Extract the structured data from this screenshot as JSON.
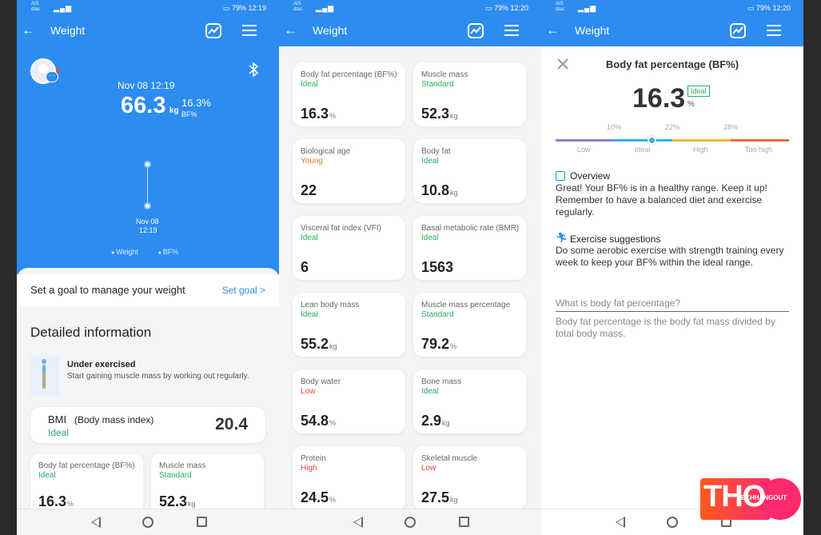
{
  "status": {
    "carrier_top": "AIS",
    "carrier_bottom": "dtac",
    "battery": "79%",
    "time_left": "12:19",
    "time_mid": "12:20",
    "time_right": "12:20"
  },
  "title": "Weight",
  "panel1": {
    "date": "Nov 08 12:19",
    "weight": "66.3",
    "weight_unit": "kg",
    "bf": "16.3%",
    "bf_label": "BF%",
    "chart_date": "Nov 08",
    "chart_time": "12:19",
    "legend": [
      "Weight",
      "BF%"
    ],
    "goal_text": "Set a goal to manage your weight",
    "goal_link": "Set goal >",
    "detail_title": "Detailed information",
    "status_title": "Under exercised",
    "status_desc": "Start gaining muscle mass by working out regularly.",
    "bmi_label": "BMI",
    "bmi_sub": "(Body mass index)",
    "bmi_status": "Ideal",
    "bmi_value": "20.4",
    "cards": [
      {
        "label": "Body fat percentage (BF%)",
        "status": "Ideal",
        "value": "16.3",
        "unit": "%"
      },
      {
        "label": "Muscle mass",
        "status": "Standard",
        "value": "52.3",
        "unit": "kg"
      }
    ]
  },
  "panel2": {
    "cards": [
      {
        "label": "Body fat percentage (BF%)",
        "status": "Ideal",
        "value": "16.3",
        "unit": "%",
        "c": "green"
      },
      {
        "label": "Muscle mass",
        "status": "Standard",
        "value": "52.3",
        "unit": "kg",
        "c": "green"
      },
      {
        "label": "Biological age",
        "status": "Young",
        "value": "22",
        "unit": "",
        "c": "orange"
      },
      {
        "label": "Body fat",
        "status": "Ideal",
        "value": "10.8",
        "unit": "kg",
        "c": "green"
      },
      {
        "label": "Visceral fat index (VFI)",
        "status": "Ideal",
        "value": "6",
        "unit": "",
        "c": "green"
      },
      {
        "label": "Basal metabolic rate (BMR)",
        "status": "Ideal",
        "value": "1563",
        "unit": "",
        "c": "green"
      },
      {
        "label": "Lean body mass",
        "status": "Ideal",
        "value": "55.2",
        "unit": "kg",
        "c": "green"
      },
      {
        "label": "Muscle mass percentage",
        "status": "Standard",
        "value": "79.2",
        "unit": "%",
        "c": "green"
      },
      {
        "label": "Body water",
        "status": "Low",
        "value": "54.8",
        "unit": "%",
        "c": "red"
      },
      {
        "label": "Bone mass",
        "status": "Ideal",
        "value": "2.9",
        "unit": "kg",
        "c": "green"
      },
      {
        "label": "Protein",
        "status": "High",
        "value": "24.5",
        "unit": "%",
        "c": "red"
      },
      {
        "label": "Skeletal muscle",
        "status": "Low",
        "value": "27.5",
        "unit": "kg",
        "c": "red"
      }
    ]
  },
  "panel3": {
    "title": "Body fat percentage (BF%)",
    "value": "16.3",
    "unit": "%",
    "badge": "Ideal",
    "ticks": [
      "10%",
      "22%",
      "28%"
    ],
    "zones": [
      "Low",
      "Ideal",
      "High",
      "Too high"
    ],
    "marker_fraction": 0.41,
    "overview_title": "Overview",
    "overview_text": "Great! Your BF% is in a healthy range. Keep it up! Remember to have a balanced diet and exercise regularly.",
    "ex_title": "Exercise suggestions",
    "ex_text": "Do some aerobic exercise with strength training every week to keep your BF% within the ideal range.",
    "q": "What is body fat percentage?",
    "a": "Body fat percentage is the body fat mass divided by total body mass."
  },
  "watermark": {
    "big": "THO",
    "small": "TECHHANGOUT"
  }
}
